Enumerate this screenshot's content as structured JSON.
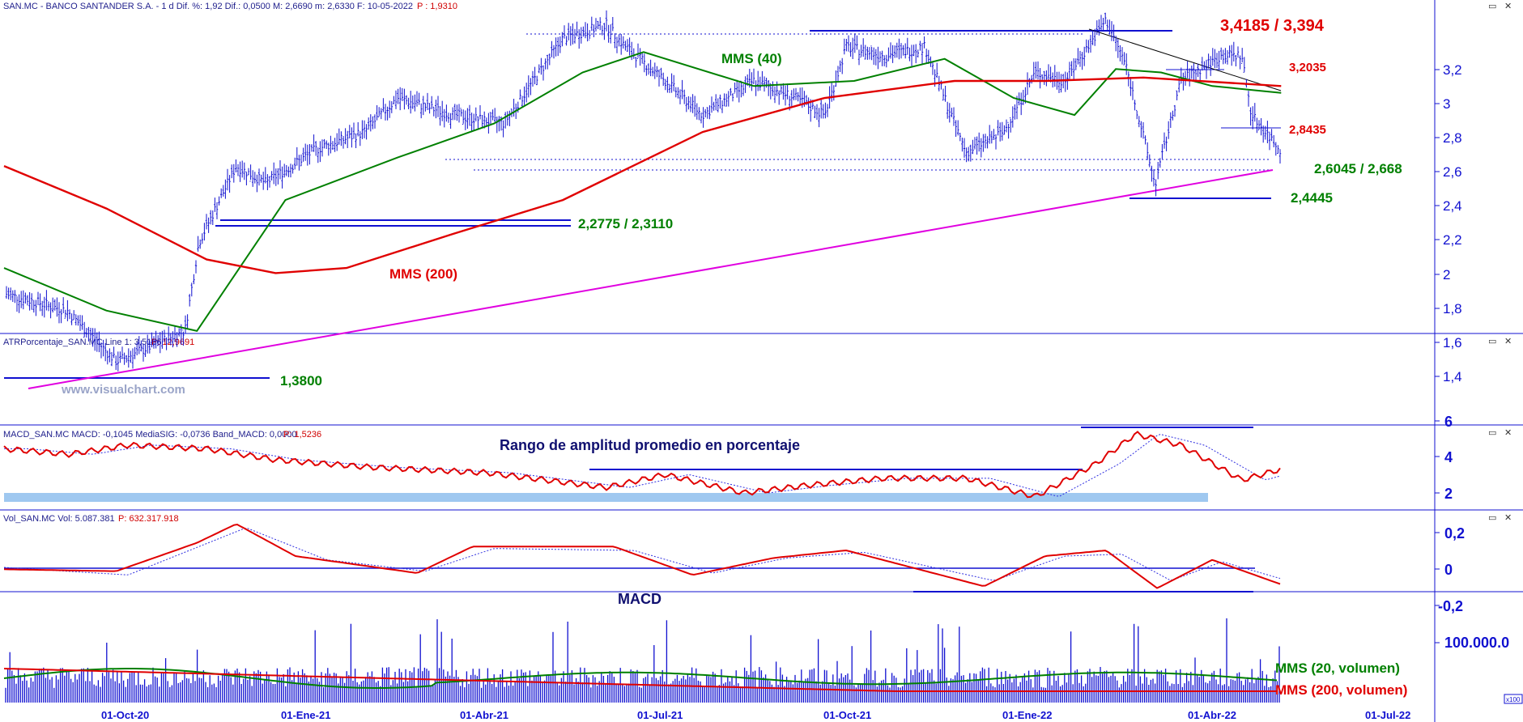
{
  "header": {
    "price": "SAN.MC - BANCO SANTANDER S.A. -  1 d  Dif. %: 1,92  Dif.: 0,0500  M: 2,6690  m: 2,6330  F: 10-05-2022",
    "price_p": "P : 1,9310",
    "atr": "ATRPorcentaje_SAN.MC  Line 1: 3,5166",
    "atr_p": "P: 12,9691",
    "macd": "MACD_SAN.MC  MACD: -0,1045  MediaSIG: -0,0736  Band_MACD: 0,0000",
    "macd_p": "P: 1,5236",
    "vol": "Vol_SAN.MC  Vol: 5.087.381",
    "vol_p": "P: 632.317.918"
  },
  "watermark": "www.visualchart.com",
  "annotations": {
    "high": "3,4185 / 3,394",
    "r1": "3,2035",
    "r2": "2,8435",
    "s1": "2,6045 / 2,668",
    "s2": "2,4445",
    "s3": "2,2775 / 2,3110",
    "s4": "1,3800",
    "mms40": "MMS (40)",
    "mms200": "MMS (200)",
    "atr_title": "Rango de amplitud promedio en porcentaje",
    "macd_title": "MACD",
    "vol_mms20": "MMS (20, volumen)",
    "vol_mms200": "MMS (200, volumen)"
  },
  "axes": {
    "price_ticks": [
      "3,2",
      "3",
      "2,8",
      "2,6",
      "2,4",
      "2,2",
      "2",
      "1,8",
      "1,6",
      "1,4"
    ],
    "atr_ticks": [
      "6",
      "4",
      "2"
    ],
    "macd_ticks": [
      "0,2",
      "0",
      "-0,2"
    ],
    "vol_ticks": [
      "100.000.0"
    ],
    "vol_unit": "x100",
    "x_ticks": [
      "01-Oct-20",
      "01-Ene-21",
      "01-Abr-21",
      "01-Jul-21",
      "01-Oct-21",
      "01-Ene-22",
      "01-Abr-22",
      "01-Jul-22"
    ]
  },
  "colors": {
    "price_bars": "#1010d0",
    "mms40": "#008000",
    "mms200": "#e00000",
    "trend": "#e000e0",
    "axis": "#1010d0",
    "atr_band": "#9fc8f0"
  },
  "chart_data": [
    {
      "type": "line",
      "panel": "price",
      "x_range": [
        "2020-07-30",
        "2022-07-25"
      ],
      "ylim": [
        1.27,
        3.45
      ],
      "series": [
        {
          "name": "SAN.MC",
          "x": [
            "2020-07-30",
            "2020-08-31",
            "2020-09-25",
            "2020-10-30",
            "2020-11-06",
            "2020-11-25",
            "2020-12-10",
            "2021-01-05",
            "2021-01-29",
            "2021-02-15",
            "2021-03-15",
            "2021-04-10",
            "2021-05-10",
            "2021-06-01",
            "2021-06-10",
            "2021-07-01",
            "2021-07-20",
            "2021-08-15",
            "2021-09-05",
            "2021-09-20",
            "2021-10-01",
            "2021-10-20",
            "2021-11-10",
            "2021-11-25",
            "2021-12-01",
            "2021-12-20",
            "2022-01-05",
            "2022-01-20",
            "2022-02-10",
            "2022-02-20",
            "2022-03-07",
            "2022-03-20",
            "2022-04-10",
            "2022-04-20",
            "2022-04-25",
            "2022-05-10"
          ],
          "values": [
            1.8,
            1.7,
            1.4,
            1.58,
            2.1,
            2.55,
            2.45,
            2.65,
            2.75,
            2.95,
            2.85,
            2.8,
            3.3,
            3.38,
            3.26,
            3.05,
            2.85,
            3.05,
            2.95,
            2.85,
            3.25,
            3.2,
            3.25,
            2.8,
            2.63,
            2.75,
            3.1,
            3.05,
            3.41,
            3.15,
            2.44,
            3.05,
            3.2,
            3.2,
            2.85,
            2.64
          ]
        },
        {
          "name": "MMS (40)",
          "x": [
            "2020-07-30",
            "2020-09-20",
            "2020-11-05",
            "2020-12-20",
            "2021-02-15",
            "2021-04-05",
            "2021-05-20",
            "2021-06-20",
            "2021-08-15",
            "2021-10-05",
            "2021-11-20",
            "2021-12-25",
            "2022-01-25",
            "2022-02-15",
            "2022-03-10",
            "2022-04-05",
            "2022-05-10"
          ],
          "values": [
            1.95,
            1.7,
            1.58,
            2.35,
            2.6,
            2.8,
            3.1,
            3.22,
            3.02,
            3.05,
            3.18,
            2.95,
            2.85,
            3.12,
            3.1,
            3.02,
            2.98
          ]
        },
        {
          "name": "MMS (200)",
          "x": [
            "2020-07-30",
            "2020-09-20",
            "2020-11-10",
            "2020-12-15",
            "2021-01-20",
            "2021-03-15",
            "2021-05-10",
            "2021-07-20",
            "2021-09-20",
            "2021-11-25",
            "2022-01-10",
            "2022-03-01",
            "2022-05-10"
          ],
          "values": [
            2.55,
            2.3,
            2.0,
            1.92,
            1.95,
            2.15,
            2.35,
            2.75,
            2.95,
            3.05,
            3.05,
            3.07,
            3.02
          ]
        }
      ]
    },
    {
      "type": "line",
      "panel": "ATR",
      "ylim": [
        1.5,
        6.2
      ],
      "series": [
        {
          "name": "ATRPorcentaje_SAN.MC",
          "x": [
            "2020-07-30",
            "2020-09-01",
            "2020-10-01",
            "2020-11-10",
            "2020-12-15",
            "2021-02-01",
            "2021-04-01",
            "2021-06-01",
            "2021-07-01",
            "2021-08-10",
            "2021-09-10",
            "2021-10-20",
            "2021-12-01",
            "2022-01-05",
            "2022-02-05",
            "2022-02-25",
            "2022-03-20",
            "2022-04-20",
            "2022-05-10"
          ],
          "values": [
            4.6,
            4.3,
            4.8,
            4.6,
            4.0,
            3.6,
            3.3,
            2.5,
            3.2,
            2.2,
            2.6,
            3.0,
            3.0,
            2.0,
            3.8,
            5.4,
            4.8,
            2.9,
            3.5
          ]
        }
      ]
    },
    {
      "type": "line",
      "panel": "MACD",
      "ylim": [
        -0.25,
        0.23
      ],
      "series": [
        {
          "name": "MACD",
          "x": [
            "2020-07-30",
            "2020-09-25",
            "2020-11-05",
            "2020-11-25",
            "2020-12-25",
            "2021-02-25",
            "2021-03-25",
            "2021-06-05",
            "2021-07-15",
            "2021-08-25",
            "2021-10-01",
            "2021-12-10",
            "2022-01-10",
            "2022-02-10",
            "2022-03-08",
            "2022-04-05",
            "2022-05-10"
          ],
          "values": [
            -0.02,
            -0.03,
            0.12,
            0.22,
            0.05,
            -0.04,
            0.1,
            0.1,
            -0.05,
            0.04,
            0.08,
            -0.11,
            0.05,
            0.08,
            -0.12,
            0.03,
            -0.1
          ]
        },
        {
          "name": "MediaSIG",
          "x": [
            "2020-07-30",
            "2020-10-01",
            "2020-11-30",
            "2021-01-10",
            "2021-03-01",
            "2021-04-05",
            "2021-06-15",
            "2021-07-25",
            "2021-09-01",
            "2021-10-10",
            "2021-12-15",
            "2022-01-20",
            "2022-02-18",
            "2022-03-15",
            "2022-04-10",
            "2022-05-10"
          ],
          "values": [
            -0.01,
            -0.05,
            0.2,
            0.03,
            -0.03,
            0.09,
            0.08,
            -0.04,
            0.04,
            0.07,
            -0.08,
            0.05,
            0.06,
            -0.08,
            0.02,
            -0.07
          ]
        }
      ]
    },
    {
      "type": "bar",
      "panel": "volume",
      "series": [
        {
          "name": "MMS (20, volumen)"
        },
        {
          "name": "MMS (200, volumen)"
        }
      ]
    }
  ]
}
